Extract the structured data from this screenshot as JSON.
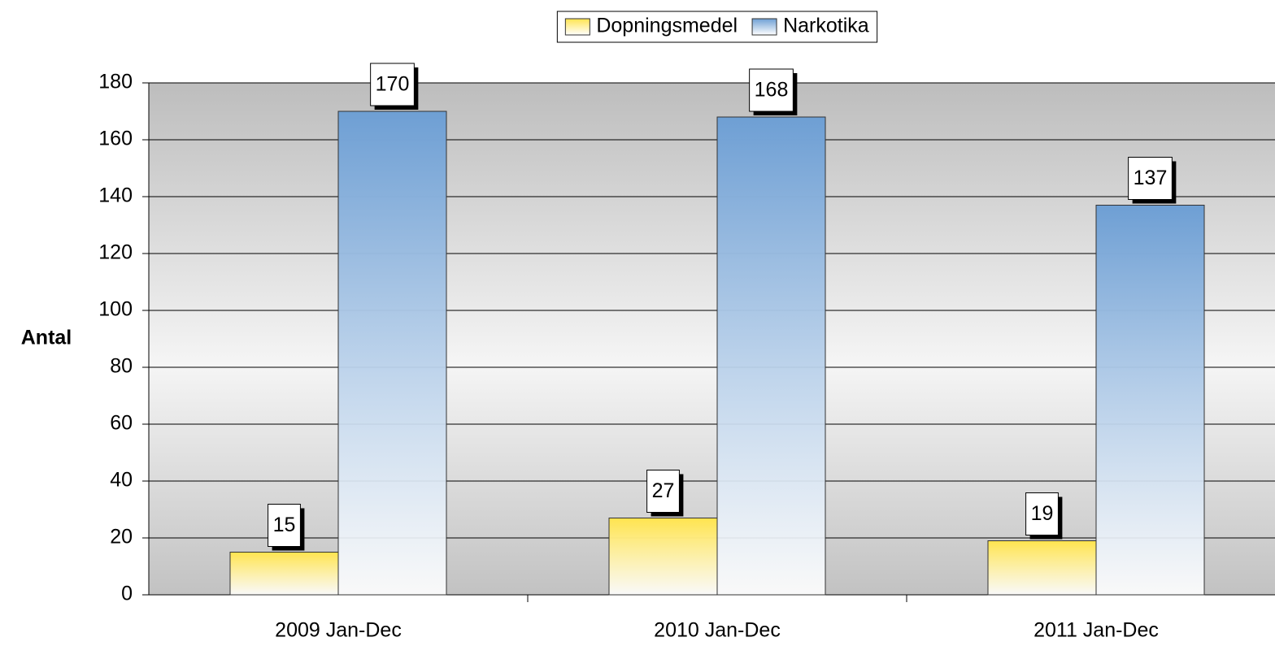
{
  "chart_data": {
    "type": "bar",
    "y_label": "Antal",
    "categories": [
      "2009 Jan-Dec",
      "2010 Jan-Dec",
      "2011 Jan-Dec"
    ],
    "series": [
      {
        "name": "Dopningsmedel",
        "color": "#ffe44f",
        "values": [
          15,
          27,
          19
        ]
      },
      {
        "name": "Narkotika",
        "color": "#6e9fd4",
        "values": [
          170,
          168,
          137
        ]
      }
    ],
    "ylim": [
      0,
      180
    ],
    "yticks": [
      0,
      20,
      40,
      60,
      80,
      100,
      120,
      140,
      160,
      180
    ],
    "grid": true,
    "legend": "top"
  }
}
